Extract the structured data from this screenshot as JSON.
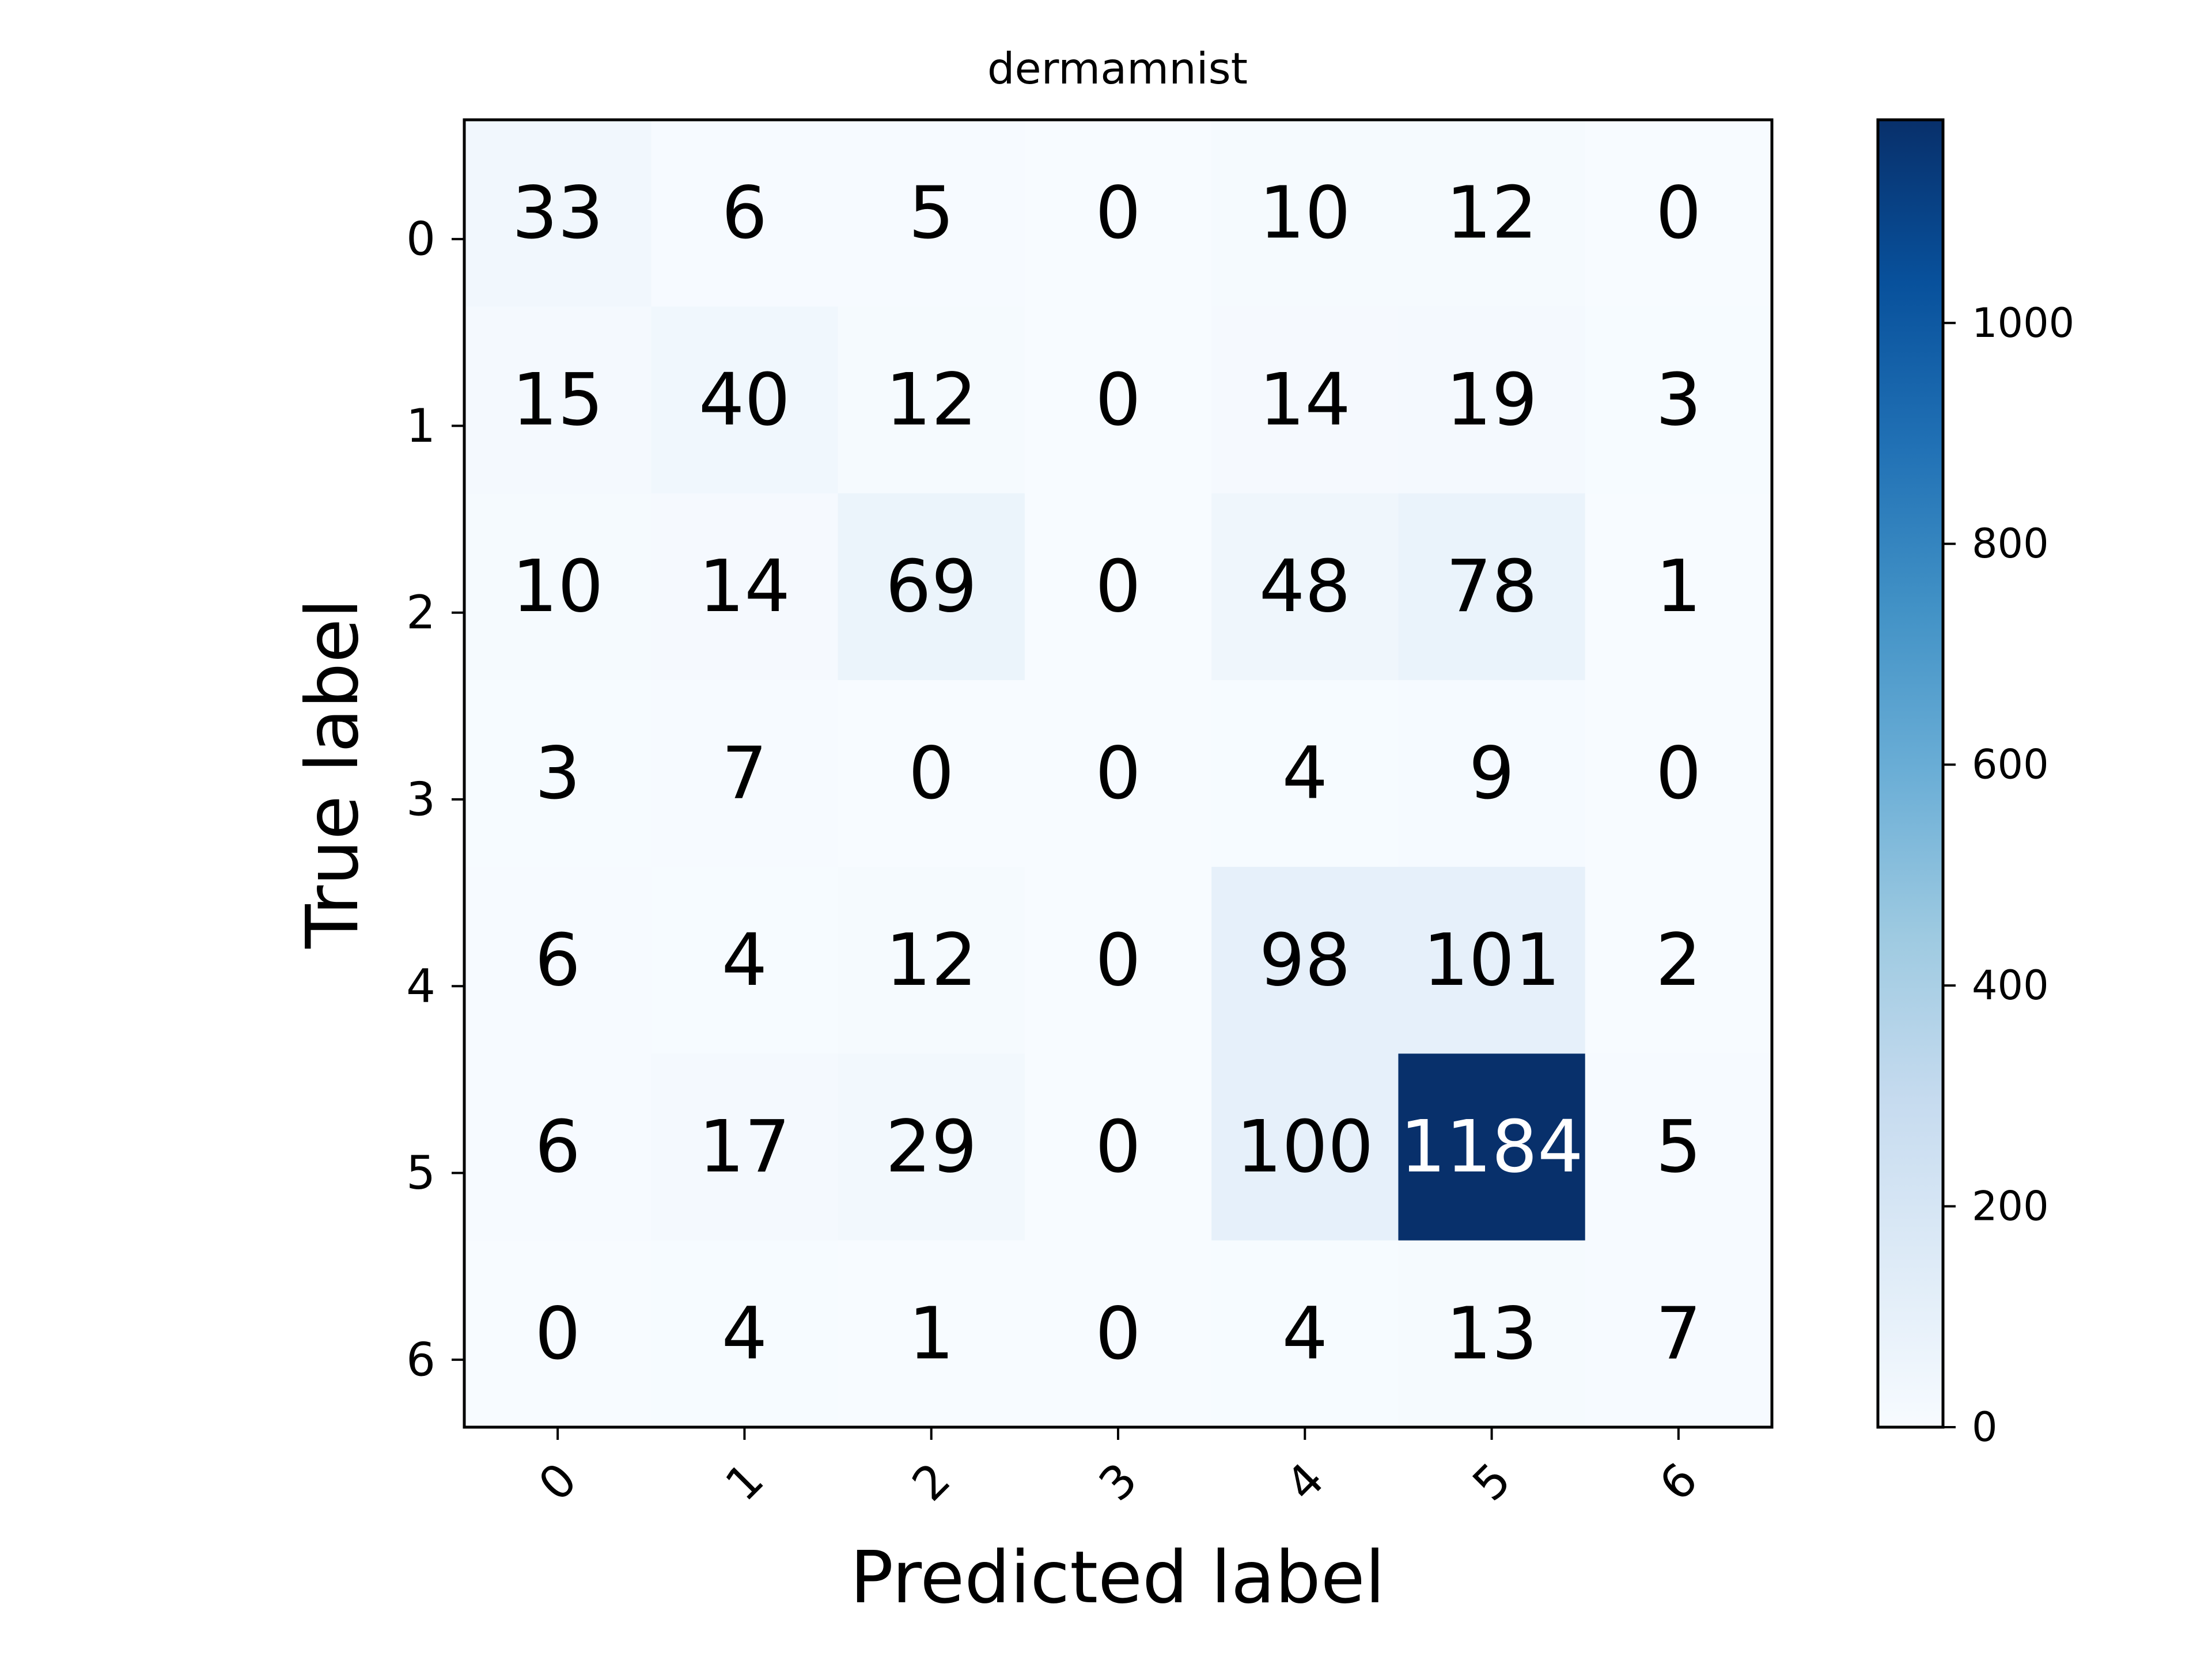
{
  "chart_data": {
    "type": "heatmap",
    "title": "dermamnist",
    "xlabel": "Predicted label",
    "ylabel": "True label",
    "x_categories": [
      "0",
      "1",
      "2",
      "3",
      "4",
      "5",
      "6"
    ],
    "y_categories": [
      "0",
      "1",
      "2",
      "3",
      "4",
      "5",
      "6"
    ],
    "values": [
      [
        33,
        6,
        5,
        0,
        10,
        12,
        0
      ],
      [
        15,
        40,
        12,
        0,
        14,
        19,
        3
      ],
      [
        10,
        14,
        69,
        0,
        48,
        78,
        1
      ],
      [
        3,
        7,
        0,
        0,
        4,
        9,
        0
      ],
      [
        6,
        4,
        12,
        0,
        98,
        101,
        2
      ],
      [
        6,
        17,
        29,
        0,
        100,
        1184,
        5
      ],
      [
        0,
        4,
        1,
        0,
        4,
        13,
        7
      ]
    ],
    "colormap": "Blues",
    "colormap_stops": [
      "#f7fbff",
      "#deebf7",
      "#c6dbef",
      "#9ecae1",
      "#6baed6",
      "#4292c6",
      "#2171b5",
      "#08519c",
      "#08306b"
    ],
    "colorbar": {
      "range": [
        0,
        1184
      ],
      "ticks": [
        0,
        200,
        400,
        600,
        800,
        1000
      ],
      "tick_labels": [
        "0",
        "200",
        "400",
        "600",
        "800",
        "1000"
      ]
    },
    "x_tick_rotation": -45,
    "grid": false
  }
}
